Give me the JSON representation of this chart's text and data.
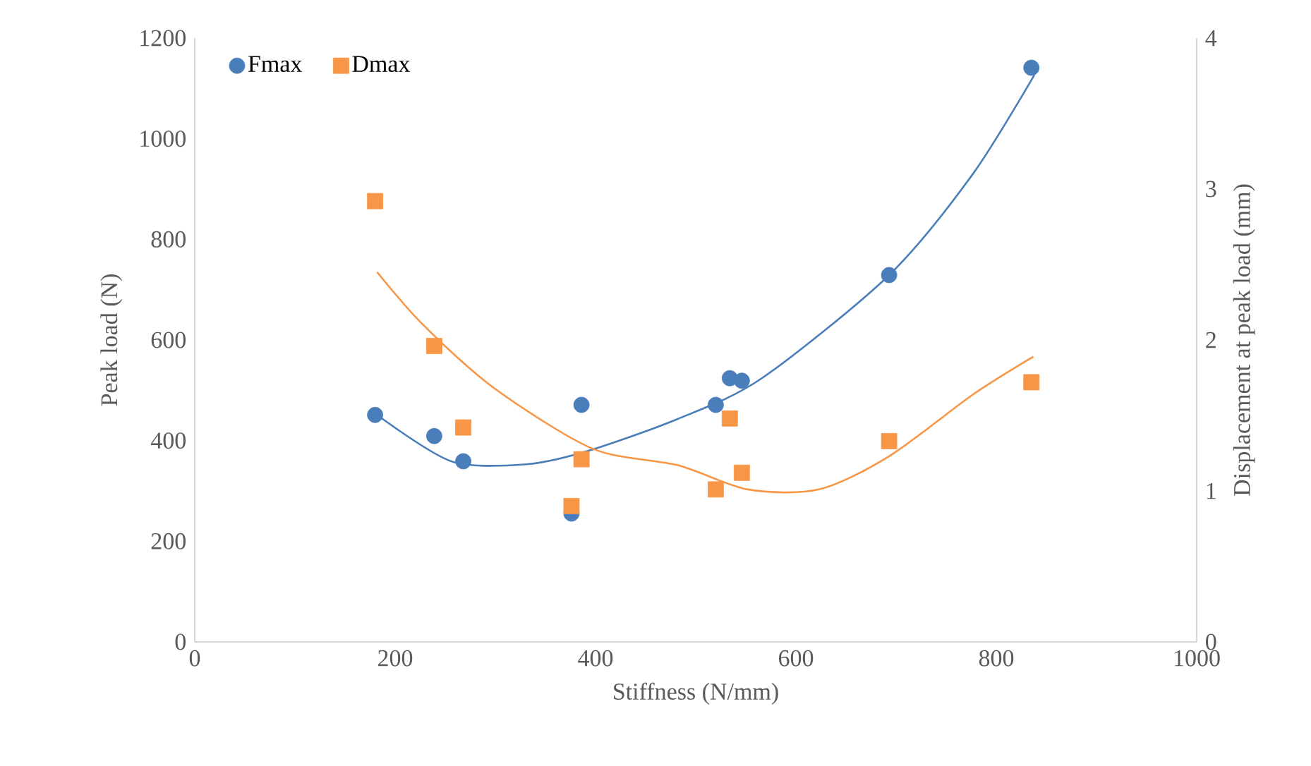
{
  "chart_data": {
    "type": "scatter",
    "xlabel": "Stiffness (N/mm)",
    "ylabel": "Peak load (N)",
    "y2label": "Displacement at peak load (mm)",
    "xlim": [
      0,
      1000
    ],
    "xticks": [
      0,
      200,
      400,
      600,
      800,
      1000
    ],
    "ylim": [
      0,
      1200
    ],
    "yticks": [
      0,
      200,
      400,
      600,
      800,
      1000,
      1200
    ],
    "y2lim": [
      0,
      4
    ],
    "y2ticks": [
      0,
      1,
      2,
      3,
      4
    ],
    "grid": false,
    "legend": "top left",
    "series": [
      {
        "name": "Fmax",
        "marker": "circle",
        "color": "#4a7ebb",
        "x": [
          180,
          239,
          268,
          376,
          386,
          520,
          534,
          546,
          693,
          835
        ],
        "values": [
          451,
          409,
          359,
          255,
          471,
          471,
          524,
          519,
          729,
          1141
        ]
      },
      {
        "name": "Dmax",
        "marker": "square",
        "axis": "y2",
        "color": "#f79646",
        "x": [
          180,
          239,
          268,
          376,
          386,
          520,
          534,
          546,
          693,
          835
        ],
        "values": [
          2.92,
          1.96,
          1.42,
          0.9,
          1.21,
          1.01,
          1.48,
          1.12,
          1.33,
          1.72
        ]
      },
      {
        "type": "line",
        "marker": "none",
        "color": "#4a7ebb",
        "x": [
          182,
          256,
          331,
          390,
          482,
          566,
          693,
          777,
          838
        ],
        "values": [
          451,
          359,
          353,
          378,
          443,
          524,
          729,
          931,
          1127
        ]
      },
      {
        "type": "line",
        "marker": "none",
        "axis": "y2",
        "color": "#f79646",
        "x": [
          182,
          228,
          299,
          397,
          482,
          552,
          623,
          693,
          777,
          837
        ],
        "values": [
          2.45,
          2.1,
          1.68,
          1.28,
          1.17,
          1.01,
          1.01,
          1.23,
          1.64,
          1.89
        ]
      }
    ]
  }
}
